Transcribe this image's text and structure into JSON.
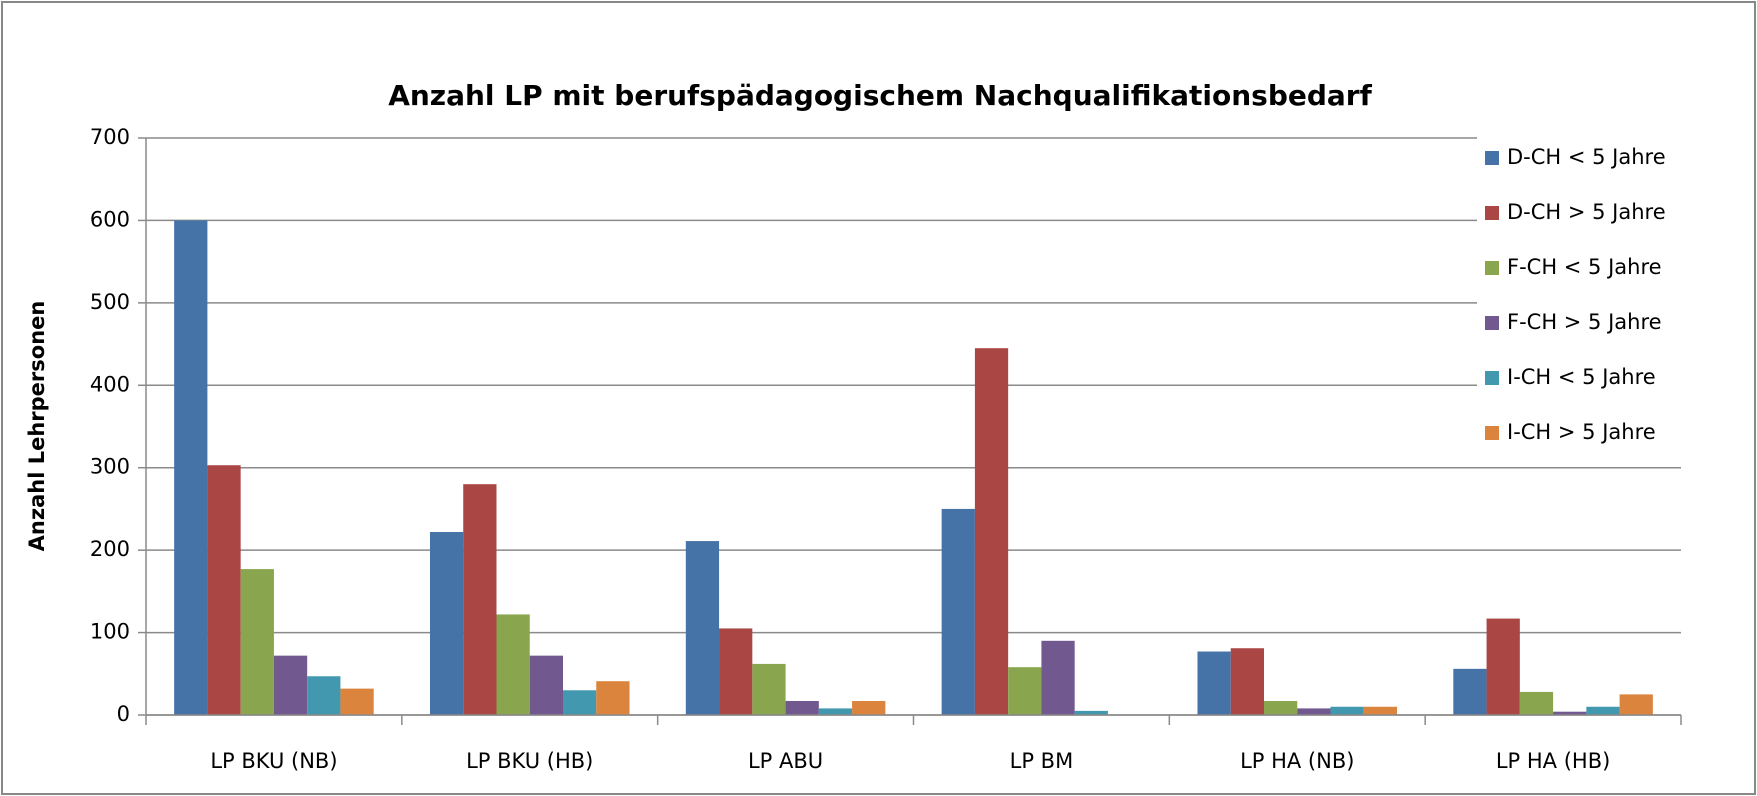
{
  "chart_data": {
    "type": "bar",
    "title": "Anzahl LP mit berufspädagogischem Nachqualifikationsbedarf",
    "y_label": "Anzahl Lehrpersonen",
    "categories": [
      "LP BKU (NB)",
      "LP BKU (HB)",
      "LP ABU",
      "LP BM",
      "LP HA (NB)",
      "LP HA (HB)"
    ],
    "series": [
      {
        "name": "D-CH < 5 Jahre",
        "color": "#4572a7",
        "values": [
          600,
          222,
          211,
          250,
          77,
          56
        ]
      },
      {
        "name": "D-CH > 5 Jahre",
        "color": "#aa4643",
        "values": [
          303,
          280,
          105,
          445,
          81,
          117
        ]
      },
      {
        "name": "F-CH < 5 Jahre",
        "color": "#89a54e",
        "values": [
          177,
          122,
          62,
          58,
          17,
          28
        ]
      },
      {
        "name": "F-CH > 5 Jahre",
        "color": "#71588f",
        "values": [
          72,
          72,
          17,
          90,
          8,
          4
        ]
      },
      {
        "name": "I-CH < 5 Jahre",
        "color": "#4198af",
        "values": [
          47,
          30,
          8,
          5,
          10,
          10
        ]
      },
      {
        "name": "I-CH > 5 Jahre",
        "color": "#db843d",
        "values": [
          32,
          41,
          17,
          0,
          10,
          25
        ]
      }
    ],
    "ylim": [
      0,
      700
    ],
    "yticks": [
      0,
      100,
      200,
      300,
      400,
      500,
      600,
      700
    ],
    "grid": true,
    "legend": "right"
  }
}
